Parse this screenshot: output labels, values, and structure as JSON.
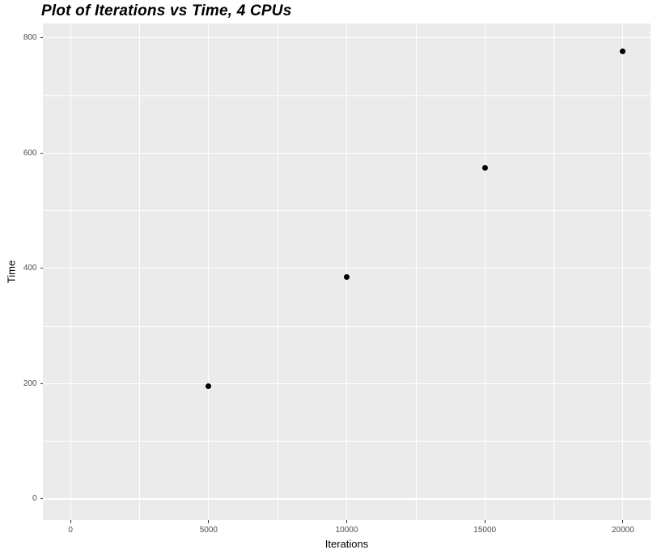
{
  "chart_data": {
    "type": "scatter",
    "title": "Plot of Iterations vs Time, 4 CPUs",
    "xlabel": "Iterations",
    "ylabel": "Time",
    "points": [
      {
        "x": 5000,
        "y": 196
      },
      {
        "x": 10000,
        "y": 385
      },
      {
        "x": 15000,
        "y": 575
      },
      {
        "x": 20000,
        "y": 777
      }
    ],
    "x_ticks": [
      {
        "value": 0,
        "label": "0"
      },
      {
        "value": 5000,
        "label": "5000"
      },
      {
        "value": 10000,
        "label": "10000"
      },
      {
        "value": 15000,
        "label": "15000"
      },
      {
        "value": 20000,
        "label": "20000"
      }
    ],
    "y_ticks": [
      {
        "value": 0,
        "label": "0"
      },
      {
        "value": 200,
        "label": "200"
      },
      {
        "value": 400,
        "label": "400"
      },
      {
        "value": 600,
        "label": "600"
      },
      {
        "value": 800,
        "label": "800"
      }
    ],
    "x_minor_ticks": [
      2500,
      7500,
      12500,
      17500
    ],
    "y_minor_ticks": [
      100,
      300,
      500,
      700
    ],
    "x_domain": [
      -1000,
      21000
    ],
    "y_domain": [
      -36.5,
      825
    ],
    "grid": true,
    "legend": "none",
    "colors": {
      "page_background": "#FFFFFF",
      "panel_background": "#EBEBEB",
      "gridline": "#FFFFFF",
      "point": "#000000",
      "tick_label": "#4D4D4D",
      "tick_mark": "#333333",
      "axis_title": "#000000",
      "title": "#000000"
    }
  }
}
